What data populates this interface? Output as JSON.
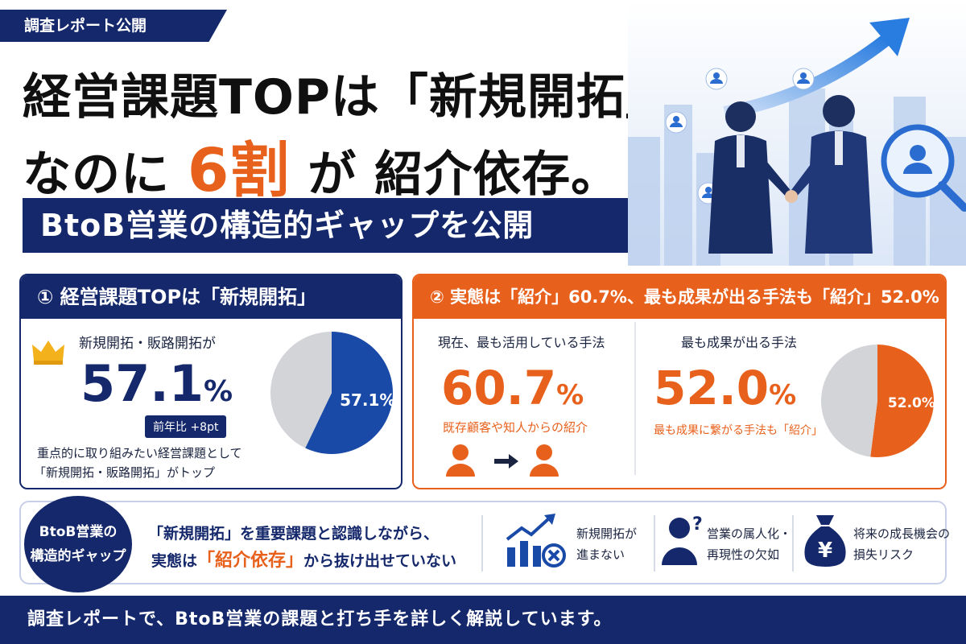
{
  "header": {
    "tag": "調査レポート公開",
    "title_line1": "経営課題TOPは「新規開拓」、",
    "title_line2_pre": "なのに",
    "title_line2_big": "6割",
    "title_line2_mid": "が",
    "title_line2_post": "紹介依存。",
    "subtitle": "BtoB営業の構造的ギャップを公開"
  },
  "card_left": {
    "heading": "① 経営課題TOPは「新規開拓」",
    "label": "新規開拓・販路開拓が",
    "value": "57.1",
    "unit": "%",
    "yoy_badge": "前年比 +8pt",
    "note_line1": "重点的に取り組みたい経営課題として",
    "note_line2": "「新規開拓・販路開拓」がトップ",
    "pie_label": "57.1%",
    "pie_color": "#1a4aa8"
  },
  "card_right": {
    "heading": "② 実態は「紹介」60.7%、最も成果が出る手法も「紹介」52.0%",
    "col1_title": "現在、最も活用している手法",
    "col1_value": "60.7",
    "col1_unit": "%",
    "col1_sub": "既存顧客や知人からの紹介",
    "col2_title": "最も成果が出る手法",
    "col2_value": "52.0",
    "col2_unit": "%",
    "col2_sub": "最も成果に繋がる手法も「紹介」",
    "pie_label": "52.0%",
    "pie_color": "#e8611c"
  },
  "chart_data": [
    {
      "type": "pie",
      "values": [
        57.1,
        42.9
      ],
      "labels": [
        "57.1%",
        ""
      ],
      "colors": [
        "#1a4aa8",
        "#d3d4d8"
      ]
    },
    {
      "type": "pie",
      "values": [
        52.0,
        48.0
      ],
      "labels": [
        "52.0%",
        ""
      ],
      "colors": [
        "#e8611c",
        "#d3d4d8"
      ]
    }
  ],
  "gap": {
    "circle_line1": "BtoB営業の",
    "circle_line2": "構造的ギャップ",
    "text_line1": "「新規開拓」を重要課題と認識しながら、",
    "text_line2_pre": "実態は",
    "text_line2_highlight": "「紹介依存」",
    "text_line2_post": "から抜け出せていない",
    "items": [
      {
        "icon": "growth-chart-x-icon",
        "line1": "新規開拓が",
        "line2": "進まない"
      },
      {
        "icon": "person-question-icon",
        "line1": "営業の属人化・",
        "line2": "再現性の欠如"
      },
      {
        "icon": "yen-bag-icon",
        "line1": "将来の成長機会の",
        "line2": "損失リスク"
      }
    ]
  },
  "footer": {
    "text": "調査レポートで、BtoB営業の課題と打ち手を詳しく解説しています。"
  },
  "colors": {
    "navy": "#14286b",
    "orange": "#e8611c",
    "gold": "#f3b21c"
  }
}
